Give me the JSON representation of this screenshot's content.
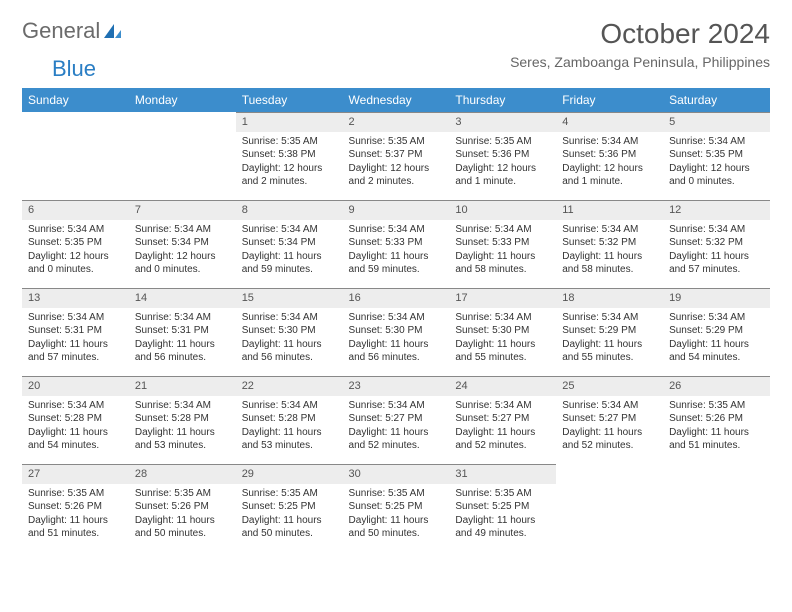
{
  "logo": {
    "text1": "General",
    "text2": "Blue"
  },
  "header": {
    "month_title": "October 2024",
    "location": "Seres, Zamboanga Peninsula, Philippines"
  },
  "colors": {
    "header_bg": "#3c8dcc",
    "header_text": "#ffffff",
    "daynum_bg": "#ededed",
    "daynum_border": "#888888",
    "body_text": "#333333",
    "logo_gray": "#6b6b6b",
    "logo_blue": "#2a7ec4"
  },
  "weekdays": [
    "Sunday",
    "Monday",
    "Tuesday",
    "Wednesday",
    "Thursday",
    "Friday",
    "Saturday"
  ],
  "weeks": [
    [
      null,
      null,
      {
        "n": "1",
        "sr": "Sunrise: 5:35 AM",
        "ss": "Sunset: 5:38 PM",
        "d1": "Daylight: 12 hours",
        "d2": "and 2 minutes."
      },
      {
        "n": "2",
        "sr": "Sunrise: 5:35 AM",
        "ss": "Sunset: 5:37 PM",
        "d1": "Daylight: 12 hours",
        "d2": "and 2 minutes."
      },
      {
        "n": "3",
        "sr": "Sunrise: 5:35 AM",
        "ss": "Sunset: 5:36 PM",
        "d1": "Daylight: 12 hours",
        "d2": "and 1 minute."
      },
      {
        "n": "4",
        "sr": "Sunrise: 5:34 AM",
        "ss": "Sunset: 5:36 PM",
        "d1": "Daylight: 12 hours",
        "d2": "and 1 minute."
      },
      {
        "n": "5",
        "sr": "Sunrise: 5:34 AM",
        "ss": "Sunset: 5:35 PM",
        "d1": "Daylight: 12 hours",
        "d2": "and 0 minutes."
      }
    ],
    [
      {
        "n": "6",
        "sr": "Sunrise: 5:34 AM",
        "ss": "Sunset: 5:35 PM",
        "d1": "Daylight: 12 hours",
        "d2": "and 0 minutes."
      },
      {
        "n": "7",
        "sr": "Sunrise: 5:34 AM",
        "ss": "Sunset: 5:34 PM",
        "d1": "Daylight: 12 hours",
        "d2": "and 0 minutes."
      },
      {
        "n": "8",
        "sr": "Sunrise: 5:34 AM",
        "ss": "Sunset: 5:34 PM",
        "d1": "Daylight: 11 hours",
        "d2": "and 59 minutes."
      },
      {
        "n": "9",
        "sr": "Sunrise: 5:34 AM",
        "ss": "Sunset: 5:33 PM",
        "d1": "Daylight: 11 hours",
        "d2": "and 59 minutes."
      },
      {
        "n": "10",
        "sr": "Sunrise: 5:34 AM",
        "ss": "Sunset: 5:33 PM",
        "d1": "Daylight: 11 hours",
        "d2": "and 58 minutes."
      },
      {
        "n": "11",
        "sr": "Sunrise: 5:34 AM",
        "ss": "Sunset: 5:32 PM",
        "d1": "Daylight: 11 hours",
        "d2": "and 58 minutes."
      },
      {
        "n": "12",
        "sr": "Sunrise: 5:34 AM",
        "ss": "Sunset: 5:32 PM",
        "d1": "Daylight: 11 hours",
        "d2": "and 57 minutes."
      }
    ],
    [
      {
        "n": "13",
        "sr": "Sunrise: 5:34 AM",
        "ss": "Sunset: 5:31 PM",
        "d1": "Daylight: 11 hours",
        "d2": "and 57 minutes."
      },
      {
        "n": "14",
        "sr": "Sunrise: 5:34 AM",
        "ss": "Sunset: 5:31 PM",
        "d1": "Daylight: 11 hours",
        "d2": "and 56 minutes."
      },
      {
        "n": "15",
        "sr": "Sunrise: 5:34 AM",
        "ss": "Sunset: 5:30 PM",
        "d1": "Daylight: 11 hours",
        "d2": "and 56 minutes."
      },
      {
        "n": "16",
        "sr": "Sunrise: 5:34 AM",
        "ss": "Sunset: 5:30 PM",
        "d1": "Daylight: 11 hours",
        "d2": "and 56 minutes."
      },
      {
        "n": "17",
        "sr": "Sunrise: 5:34 AM",
        "ss": "Sunset: 5:30 PM",
        "d1": "Daylight: 11 hours",
        "d2": "and 55 minutes."
      },
      {
        "n": "18",
        "sr": "Sunrise: 5:34 AM",
        "ss": "Sunset: 5:29 PM",
        "d1": "Daylight: 11 hours",
        "d2": "and 55 minutes."
      },
      {
        "n": "19",
        "sr": "Sunrise: 5:34 AM",
        "ss": "Sunset: 5:29 PM",
        "d1": "Daylight: 11 hours",
        "d2": "and 54 minutes."
      }
    ],
    [
      {
        "n": "20",
        "sr": "Sunrise: 5:34 AM",
        "ss": "Sunset: 5:28 PM",
        "d1": "Daylight: 11 hours",
        "d2": "and 54 minutes."
      },
      {
        "n": "21",
        "sr": "Sunrise: 5:34 AM",
        "ss": "Sunset: 5:28 PM",
        "d1": "Daylight: 11 hours",
        "d2": "and 53 minutes."
      },
      {
        "n": "22",
        "sr": "Sunrise: 5:34 AM",
        "ss": "Sunset: 5:28 PM",
        "d1": "Daylight: 11 hours",
        "d2": "and 53 minutes."
      },
      {
        "n": "23",
        "sr": "Sunrise: 5:34 AM",
        "ss": "Sunset: 5:27 PM",
        "d1": "Daylight: 11 hours",
        "d2": "and 52 minutes."
      },
      {
        "n": "24",
        "sr": "Sunrise: 5:34 AM",
        "ss": "Sunset: 5:27 PM",
        "d1": "Daylight: 11 hours",
        "d2": "and 52 minutes."
      },
      {
        "n": "25",
        "sr": "Sunrise: 5:34 AM",
        "ss": "Sunset: 5:27 PM",
        "d1": "Daylight: 11 hours",
        "d2": "and 52 minutes."
      },
      {
        "n": "26",
        "sr": "Sunrise: 5:35 AM",
        "ss": "Sunset: 5:26 PM",
        "d1": "Daylight: 11 hours",
        "d2": "and 51 minutes."
      }
    ],
    [
      {
        "n": "27",
        "sr": "Sunrise: 5:35 AM",
        "ss": "Sunset: 5:26 PM",
        "d1": "Daylight: 11 hours",
        "d2": "and 51 minutes."
      },
      {
        "n": "28",
        "sr": "Sunrise: 5:35 AM",
        "ss": "Sunset: 5:26 PM",
        "d1": "Daylight: 11 hours",
        "d2": "and 50 minutes."
      },
      {
        "n": "29",
        "sr": "Sunrise: 5:35 AM",
        "ss": "Sunset: 5:25 PM",
        "d1": "Daylight: 11 hours",
        "d2": "and 50 minutes."
      },
      {
        "n": "30",
        "sr": "Sunrise: 5:35 AM",
        "ss": "Sunset: 5:25 PM",
        "d1": "Daylight: 11 hours",
        "d2": "and 50 minutes."
      },
      {
        "n": "31",
        "sr": "Sunrise: 5:35 AM",
        "ss": "Sunset: 5:25 PM",
        "d1": "Daylight: 11 hours",
        "d2": "and 49 minutes."
      },
      null,
      null
    ]
  ]
}
